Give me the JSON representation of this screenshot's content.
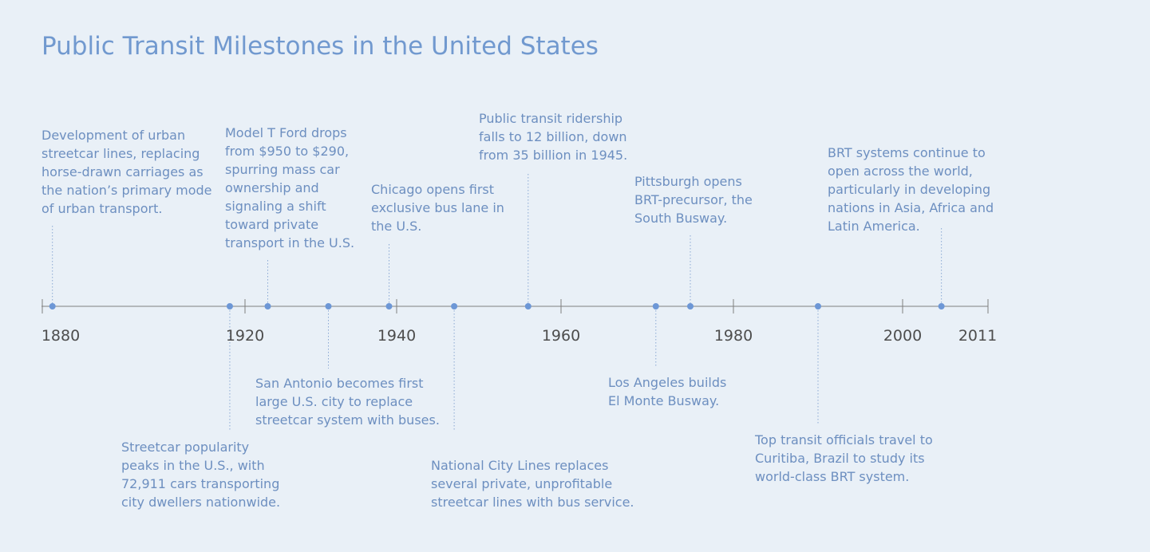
{
  "title": "Public Transit Milestones in the United States",
  "years": [
    "1880",
    "1920",
    "1940",
    "1960",
    "1980",
    "2000",
    "2011"
  ],
  "events": [
    {
      "year": 1882,
      "side": "above",
      "text": "Development of urban\nstreetcar lines, replacing\nhorse-drawn carriages as\nthe nation’s primary mode\nof urban transport."
    },
    {
      "year": 1917,
      "side": "below",
      "text": "Streetcar popularity\npeaks in the U.S., with\n72,911 cars transporting\ncity dwellers nationwide."
    },
    {
      "year": 1923,
      "side": "above",
      "text": "Model T Ford drops\nfrom $950 to $290,\nspurring mass car\nownership and\nsignaling a shift\ntoward private\ntransport in the U.S."
    },
    {
      "year": 1931,
      "side": "below",
      "text": "San Antonio becomes first\nlarge U.S. city to replace\nstreetcar system with buses."
    },
    {
      "year": 1939,
      "side": "above",
      "text": "Chicago opens first\nexclusive bus lane in\nthe U.S."
    },
    {
      "year": 1947,
      "side": "below",
      "text": "National City Lines replaces\nseveral private, unprofitable\nstreetcar lines with bus service."
    },
    {
      "year": 1956,
      "side": "above",
      "text": "Public transit ridership\nfalls to 12 billion, down\nfrom 35 billion in 1945."
    },
    {
      "year": 1971,
      "side": "below",
      "text": "Los Angeles builds\nEl Monte Busway."
    },
    {
      "year": 1975,
      "side": "above",
      "text": "Pittsburgh opens\nBRT-precursor, the\nSouth Busway."
    },
    {
      "year": 1990,
      "side": "below",
      "text": "Top transit officials travel to\nCuritiba, Brazil to study its\nworld-class BRT system."
    },
    {
      "year": 2005,
      "side": "above",
      "text": "BRT systems continue to\nopen across the world,\nparticularly in developing\nnations in Asia, Africa and\nLatin America."
    }
  ],
  "colors": {
    "background": "#e9f0f7",
    "accent": "#6d97d6",
    "text": "#6d8fc0",
    "axis": "#7f7f7f"
  }
}
